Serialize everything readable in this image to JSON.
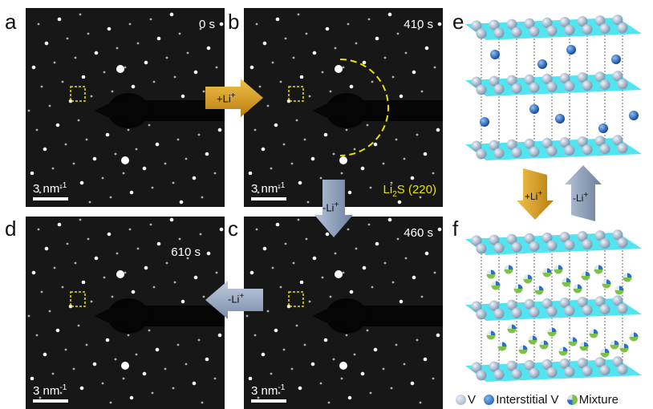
{
  "panels": {
    "a": {
      "label": "a",
      "time": "0 s",
      "scale": "3 nm"
    },
    "b": {
      "label": "b",
      "time": "410 s",
      "scale": "3 nm",
      "ring_label_main": "Li",
      "ring_label_sub": "2",
      "ring_label_rest": "S (220)"
    },
    "c": {
      "label": "c",
      "time": "460 s",
      "scale": "3 nm"
    },
    "d": {
      "label": "d",
      "time": "610 s",
      "scale": "3 nm"
    },
    "e": {
      "label": "e"
    },
    "f": {
      "label": "f"
    }
  },
  "scale_exp": "-1",
  "arrows": {
    "ab": {
      "text": "+Li",
      "sup": "+"
    },
    "bc": {
      "text": "-Li",
      "sup": "+"
    },
    "cd": {
      "text": "-Li",
      "sup": "+"
    },
    "ef_down": {
      "text": "+Li",
      "sup": "+"
    },
    "ef_up": {
      "text": "-Li",
      "sup": "+"
    }
  },
  "legend": {
    "v": "V",
    "interstitial": "Interstitial V",
    "mixture": "Mixture"
  },
  "colors": {
    "plane": "#33e0ef",
    "v_atom": "#9fb4c8",
    "interstitial_atom": "#1f6fd0",
    "mixture_green": "#7fc04a",
    "arrow_orange": "#e3a21a",
    "arrow_gray": "#8a9bb5",
    "marker_yellow": "#e8e000"
  }
}
